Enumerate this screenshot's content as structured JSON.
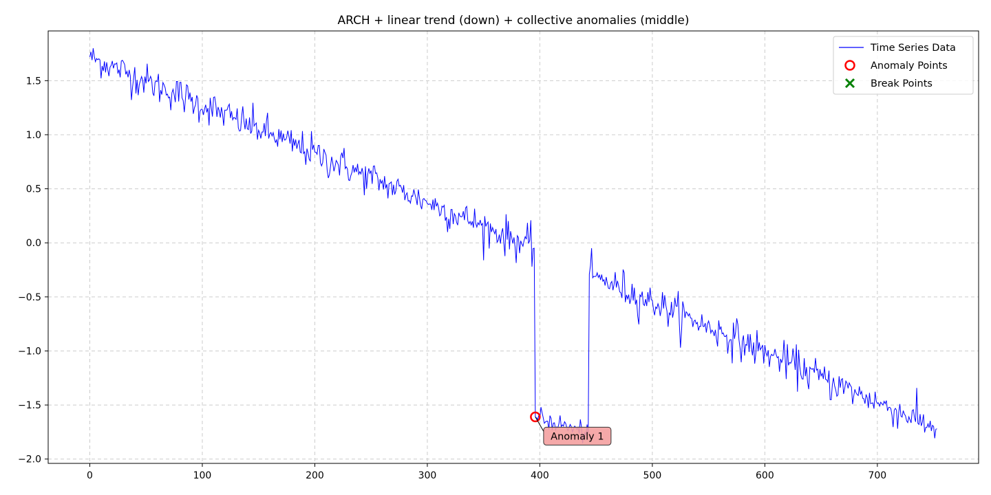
{
  "chart_data": {
    "type": "line",
    "title": "ARCH + linear trend (down) + collective anomalies (middle)",
    "xlabel": "",
    "ylabel": "",
    "xlim": [
      -37,
      790
    ],
    "ylim": [
      -2.04,
      1.96
    ],
    "xticks": [
      0,
      100,
      200,
      300,
      400,
      500,
      600,
      700
    ],
    "yticks": [
      1.5,
      1.0,
      0.5,
      0.0,
      -0.5,
      -1.0,
      -1.5,
      -2.0
    ],
    "xtick_labels": [
      "0",
      "100",
      "200",
      "300",
      "400",
      "500",
      "600",
      "700"
    ],
    "ytick_labels": [
      "1.5",
      "1.0",
      "0.5",
      "0.0",
      "−0.5",
      "−1.0",
      "−1.5",
      "−2.0"
    ],
    "grid": true,
    "legend_position": "top-right",
    "legend": [
      "Time Series Data",
      "Anomaly Points",
      "Break Points"
    ],
    "series": [
      {
        "name": "Time Series Data",
        "color": "#0000ff",
        "segments": [
          {
            "x_start": 0,
            "x_end": 395,
            "y_start": 1.72,
            "y_end": -0.05
          },
          {
            "x_start": 396,
            "x_end": 443,
            "y_start": -1.61,
            "y_end": -1.76
          },
          {
            "x_start": 444,
            "x_end": 753,
            "y_start": -0.29,
            "y_end": -1.72
          }
        ]
      }
    ],
    "anomaly_points": [
      {
        "x": 396,
        "y": -1.61
      }
    ],
    "annotations": [
      {
        "text": "Anomaly 1",
        "x": 396,
        "y": -1.61
      }
    ],
    "colors": {
      "line": "#0000ff",
      "anomaly": "#ff0000",
      "break": "#008000",
      "annotation_bg": "#f4a0a0",
      "grid": "#cccccc"
    }
  }
}
